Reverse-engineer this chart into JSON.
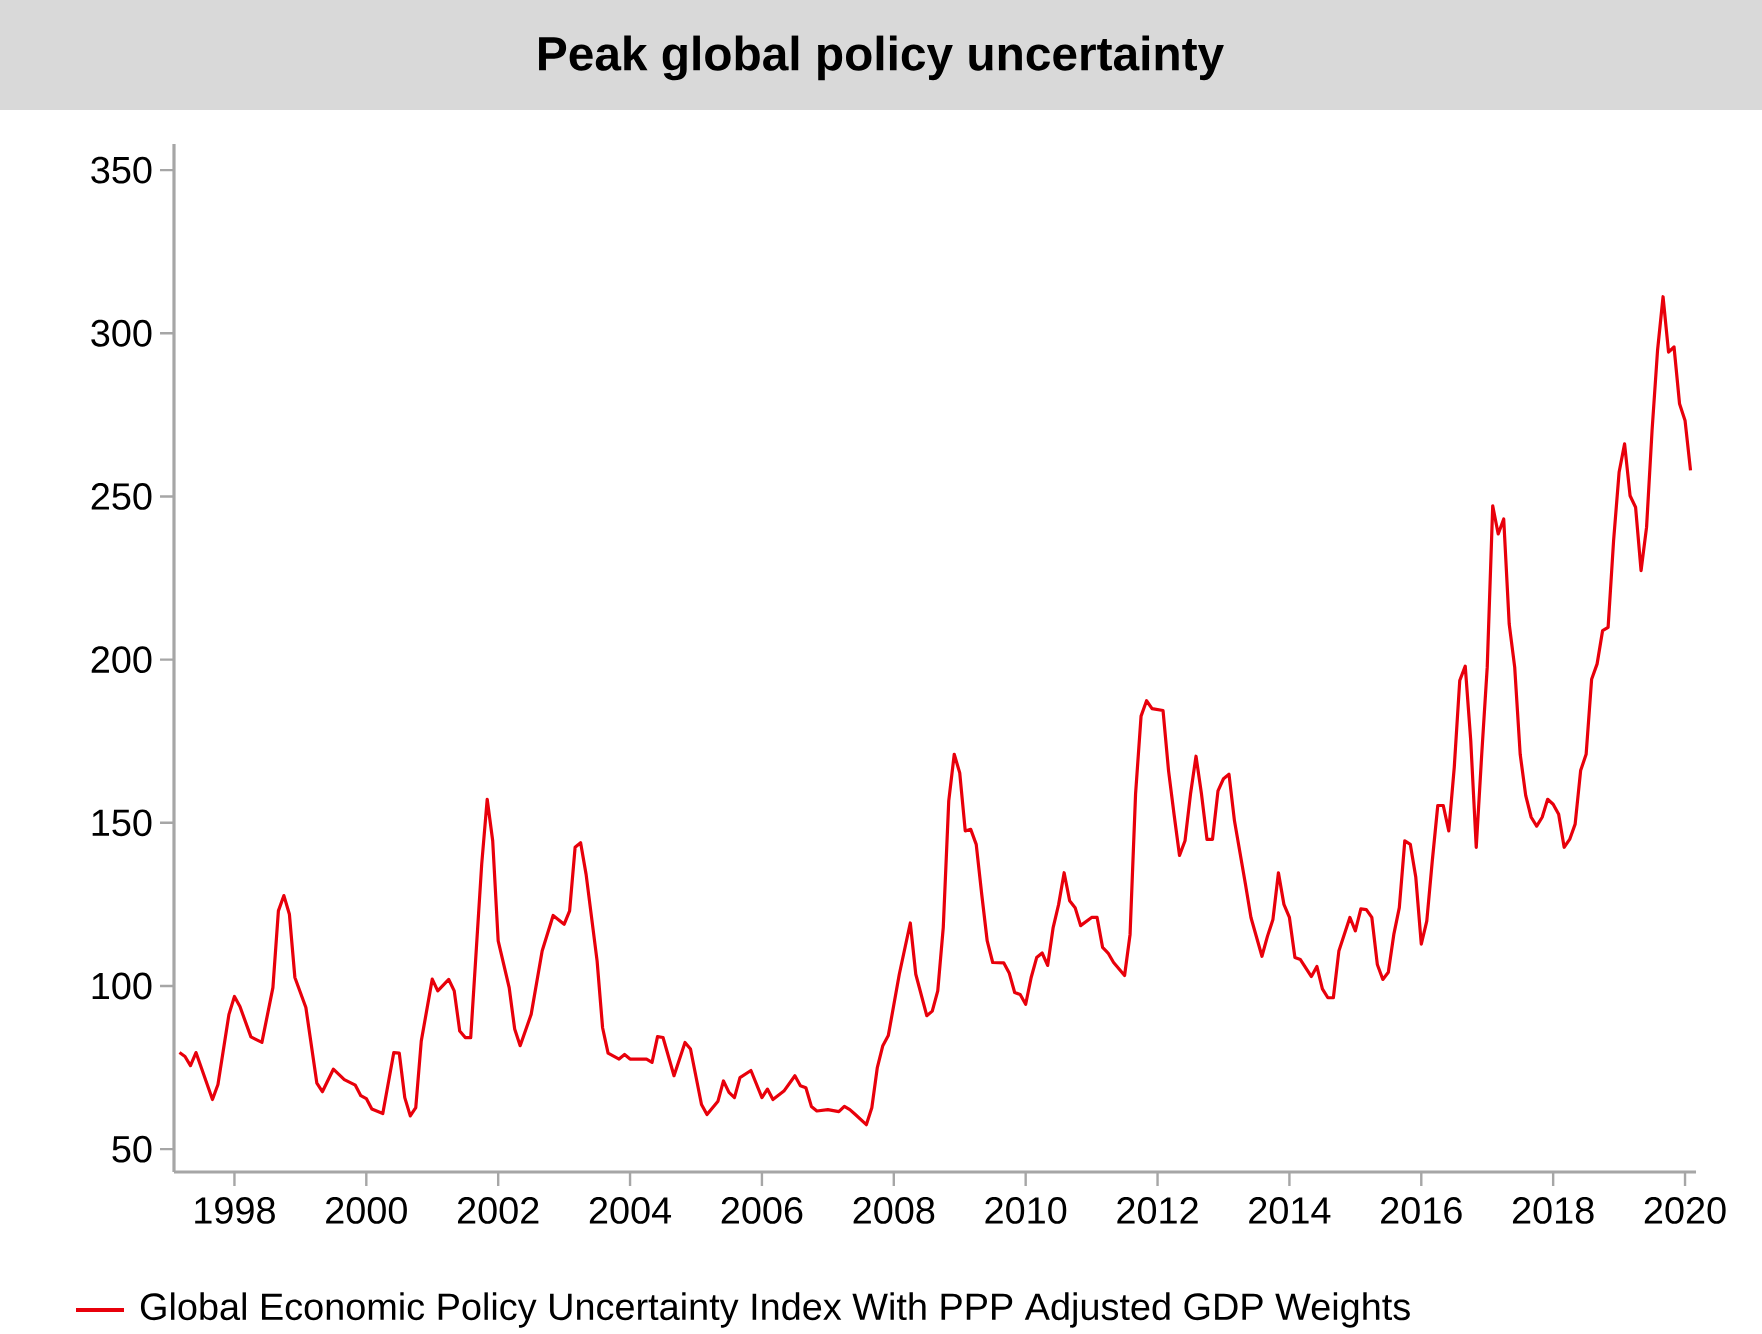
{
  "chart_data": {
    "type": "line",
    "title": "Peak global policy uncertainty",
    "x": [
      "1997-03",
      "1997-04",
      "1997-05",
      "1997-06",
      "1997-09",
      "1997-10",
      "1997-12",
      "1998-01",
      "1998-02",
      "1998-04",
      "1998-06",
      "1998-08",
      "1998-09",
      "1998-10",
      "1998-11",
      "1998-12",
      "1999-02",
      "1999-04",
      "1999-05",
      "1999-07",
      "1999-09",
      "1999-11",
      "1999-12",
      "2000-01",
      "2000-02",
      "2000-04",
      "2000-06",
      "2000-07",
      "2000-08",
      "2000-09",
      "2000-10",
      "2000-11",
      "2001-01",
      "2001-02",
      "2001-04",
      "2001-05",
      "2001-06",
      "2001-07",
      "2001-08",
      "2001-10",
      "2001-11",
      "2001-12",
      "2002-01",
      "2002-03",
      "2002-04",
      "2002-05",
      "2002-07",
      "2002-09",
      "2002-11",
      "2003-01",
      "2003-02",
      "2003-03",
      "2003-04",
      "2003-05",
      "2003-07",
      "2003-08",
      "2003-09",
      "2003-11",
      "2003-12",
      "2004-01",
      "2004-04",
      "2004-05",
      "2004-06",
      "2004-07",
      "2004-09",
      "2004-11",
      "2004-12",
      "2005-02",
      "2005-03",
      "2005-05",
      "2005-06",
      "2005-07",
      "2005-08",
      "2005-09",
      "2005-11",
      "2006-01",
      "2006-02",
      "2006-03",
      "2006-05",
      "2006-07",
      "2006-08",
      "2006-09",
      "2006-10",
      "2006-11",
      "2007-01",
      "2007-03",
      "2007-04",
      "2007-05",
      "2007-06",
      "2007-08",
      "2007-09",
      "2007-10",
      "2007-11",
      "2007-12",
      "2008-02",
      "2008-04",
      "2008-05",
      "2008-07",
      "2008-08",
      "2008-09",
      "2008-10",
      "2008-11",
      "2008-12",
      "2009-01",
      "2009-02",
      "2009-03",
      "2009-04",
      "2009-05",
      "2009-06",
      "2009-07",
      "2009-09",
      "2009-10",
      "2009-11",
      "2009-12",
      "2010-01",
      "2010-02",
      "2010-03",
      "2010-04",
      "2010-05",
      "2010-06",
      "2010-07",
      "2010-08",
      "2010-09",
      "2010-10",
      "2010-11",
      "2011-01",
      "2011-02",
      "2011-03",
      "2011-04",
      "2011-05",
      "2011-07",
      "2011-08",
      "2011-09",
      "2011-10",
      "2011-11",
      "2011-12",
      "2012-02",
      "2012-03",
      "2012-04",
      "2012-05",
      "2012-06",
      "2012-07",
      "2012-08",
      "2012-09",
      "2012-10",
      "2012-11",
      "2012-12",
      "2013-01",
      "2013-02",
      "2013-03",
      "2013-05",
      "2013-06",
      "2013-08",
      "2013-09",
      "2013-10",
      "2013-11",
      "2013-12",
      "2014-01",
      "2014-02",
      "2014-03",
      "2014-05",
      "2014-06",
      "2014-07",
      "2014-08",
      "2014-09",
      "2014-10",
      "2014-12",
      "2015-01",
      "2015-02",
      "2015-03",
      "2015-04",
      "2015-05",
      "2015-06",
      "2015-07",
      "2015-08",
      "2015-09",
      "2015-10",
      "2015-11",
      "2015-12",
      "2016-01",
      "2016-02",
      "2016-03",
      "2016-04",
      "2016-05",
      "2016-06",
      "2016-07",
      "2016-08",
      "2016-09",
      "2016-10",
      "2016-11",
      "2016-12",
      "2017-01",
      "2017-02",
      "2017-03",
      "2017-04",
      "2017-05",
      "2017-06",
      "2017-07",
      "2017-08",
      "2017-09",
      "2017-10",
      "2017-11",
      "2017-12",
      "2018-01",
      "2018-02",
      "2018-03",
      "2018-04",
      "2018-05",
      "2018-06",
      "2018-07",
      "2018-08",
      "2018-09",
      "2018-10",
      "2018-11",
      "2018-12",
      "2019-01",
      "2019-02",
      "2019-03",
      "2019-04",
      "2019-05",
      "2019-06",
      "2019-07",
      "2019-08",
      "2019-09",
      "2019-10",
      "2019-11",
      "2019-12",
      "2020-01",
      "2020-02"
    ],
    "series": [
      {
        "name": "Global Economic Policy Uncertainty Index With PPP Adjusted GDP Weights",
        "color": "#e8000b",
        "values": [
          79.6,
          78.4,
          75.6,
          79.6,
          65.2,
          69.8,
          91.3,
          96.8,
          93.7,
          84.4,
          82.7,
          99.5,
          123,
          127.7,
          122,
          102.6,
          93.4,
          70.2,
          67.6,
          74.5,
          71.3,
          69.6,
          66.4,
          65.5,
          62.3,
          60.9,
          79.6,
          79.4,
          65.8,
          60.2,
          62.7,
          83.1,
          102.1,
          98.5,
          102,
          98.5,
          86.2,
          84.2,
          84.2,
          137.3,
          157.2,
          144.5,
          113.8,
          99.5,
          86.8,
          81.7,
          91.3,
          110.7,
          121.6,
          118.9,
          123,
          142.5,
          143.9,
          134.2,
          107.7,
          87.2,
          79.4,
          77.6,
          79,
          77.6,
          77.6,
          76.6,
          84.5,
          84.2,
          72.5,
          82.7,
          80.7,
          63.7,
          60.6,
          64.7,
          70.9,
          67.4,
          65.8,
          71.9,
          74.1,
          65.8,
          68.4,
          65.2,
          67.8,
          72.5,
          69.4,
          68.8,
          63.1,
          61.7,
          62.1,
          61.5,
          63.1,
          62.1,
          60.6,
          57.5,
          62.7,
          75,
          81.7,
          84.8,
          103.6,
          119.3,
          103.6,
          90.9,
          92.3,
          98.5,
          117.9,
          156.7,
          171,
          165.3,
          147.5,
          148,
          143.4,
          128.1,
          113.8,
          107.2,
          107.1,
          104,
          98,
          97.4,
          94.4,
          102.6,
          108.7,
          110.1,
          106.3,
          117.9,
          125,
          134.7,
          126.1,
          124,
          118.5,
          121,
          121,
          111.8,
          110.1,
          107.2,
          103.2,
          115.8,
          158.8,
          182.7,
          187.4,
          185,
          184.4,
          166,
          152.6,
          140,
          144.5,
          158.8,
          170.4,
          158.8,
          144.9,
          144.9,
          159.8,
          163.5,
          164.9,
          150.6,
          131.2,
          121,
          109.1,
          115.2,
          120.4,
          134.7,
          125,
          121,
          108.7,
          108.1,
          102.9,
          106,
          99.1,
          96.4,
          96.4,
          110.7,
          121,
          116.9,
          123.6,
          123.4,
          121,
          106.6,
          102,
          104.2,
          115.8,
          124,
          144.5,
          143.4,
          133.3,
          112.8,
          119.9,
          138.3,
          155.3,
          155.3,
          147.5,
          167,
          193.6,
          198,
          175.2,
          142.5,
          171,
          197.7,
          247.1,
          238.5,
          243.1,
          210.9,
          197.7,
          171,
          158.4,
          151.7,
          149,
          151.7,
          157.2,
          155.7,
          152.6,
          142.5,
          144.9,
          149.6,
          166,
          171,
          194,
          198.7,
          208.9,
          209.9,
          236.5,
          257.4,
          266.1,
          250.2,
          246.7,
          227.3,
          240.6,
          270.2,
          294.8,
          311.2,
          294.2,
          295.8,
          278.4,
          273.3,
          258
        ]
      }
    ],
    "xlim": [
      "1997-02",
      "2020-03"
    ],
    "ylim": [
      43,
      358
    ],
    "xticks": [
      "1998",
      "2000",
      "2002",
      "2004",
      "2006",
      "2008",
      "2010",
      "2012",
      "2014",
      "2016",
      "2018",
      "2020"
    ],
    "yticks": [
      50,
      100,
      150,
      200,
      250,
      300,
      350
    ],
    "grid": false,
    "legend": "bottom",
    "line_style": "solid",
    "marker": "none"
  }
}
